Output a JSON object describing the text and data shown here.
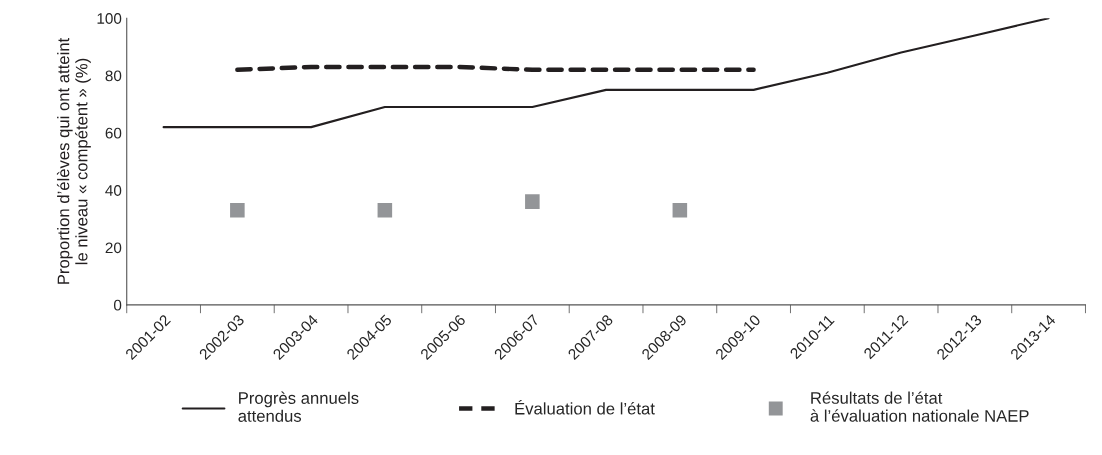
{
  "chart_data": {
    "type": "line",
    "ylabel": "Proportion d’élèves qui ont atteint\nle niveau « compétent » (%)",
    "categories": [
      "2001-02",
      "2002-03",
      "2003-04",
      "2004-05",
      "2005-06",
      "2006-07",
      "2007-08",
      "2008-09",
      "2009-10",
      "2010-11",
      "2011-12",
      "2012-13",
      "2013-14"
    ],
    "ylim": [
      0,
      100
    ],
    "yticks": [
      0,
      20,
      40,
      60,
      80,
      100
    ],
    "grid": false,
    "legend": "bottom",
    "series": [
      {
        "name": "Progrès annuels\nattendus",
        "color": "#231f20",
        "line_style": "solid",
        "values": [
          62,
          62,
          62,
          69,
          69,
          69,
          75,
          75,
          75,
          81,
          88,
          94,
          100
        ]
      },
      {
        "name": "Évaluation de l’état",
        "color": "#231f20",
        "line_style": "dashed",
        "values": [
          null,
          82,
          83,
          83,
          83,
          82,
          82,
          82,
          82,
          null,
          null,
          null,
          null
        ]
      },
      {
        "name": "Résultats de l’état\nà l’évaluation nationale NAEP",
        "type": "scatter",
        "marker": "square",
        "color": "#939598",
        "values": [
          null,
          33,
          null,
          33,
          null,
          36,
          null,
          33,
          null,
          null,
          null,
          null,
          null
        ]
      }
    ]
  }
}
